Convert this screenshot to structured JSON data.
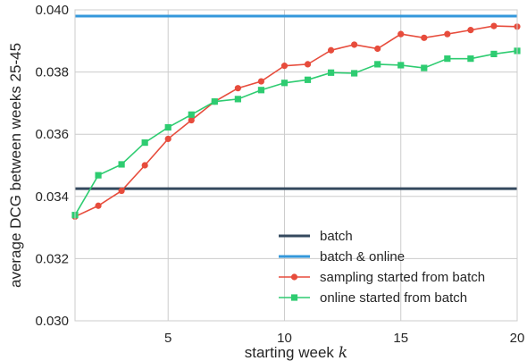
{
  "chart_data": {
    "type": "line",
    "xlabel": "starting week",
    "xlabel_var": "k",
    "ylabel": "average DCG between weeks 25-45",
    "xlim": [
      1,
      20
    ],
    "ylim": [
      0.03,
      0.04
    ],
    "x_ticks": [
      5,
      10,
      15,
      20
    ],
    "y_ticks": [
      "0.030",
      "0.032",
      "0.034",
      "0.036",
      "0.038",
      "0.040"
    ],
    "grid": true,
    "legend_position": "lower-right",
    "series": [
      {
        "name": "batch",
        "kind": "hline",
        "color": "#34495e",
        "value": 0.03425
      },
      {
        "name": "batch & online",
        "kind": "hline",
        "color": "#3498db",
        "value": 0.0398
      },
      {
        "name": "sampling started from batch",
        "kind": "line",
        "marker": "circle",
        "color": "#e74c3c",
        "x": [
          1,
          2,
          3,
          4,
          5,
          6,
          7,
          8,
          9,
          10,
          11,
          12,
          13,
          14,
          15,
          16,
          17,
          18,
          19,
          20
        ],
        "values": [
          0.03335,
          0.0337,
          0.03418,
          0.035,
          0.03585,
          0.03645,
          0.03705,
          0.03748,
          0.0377,
          0.0382,
          0.03825,
          0.0387,
          0.03888,
          0.03875,
          0.03922,
          0.0391,
          0.03922,
          0.03935,
          0.03948,
          0.03946
        ]
      },
      {
        "name": "online started from batch",
        "kind": "line",
        "marker": "square",
        "color": "#2ecc71",
        "x": [
          1,
          2,
          3,
          4,
          5,
          6,
          7,
          8,
          9,
          10,
          11,
          12,
          13,
          14,
          15,
          16,
          17,
          18,
          19,
          20
        ],
        "values": [
          0.0334,
          0.03468,
          0.03503,
          0.03573,
          0.03622,
          0.03663,
          0.03705,
          0.03713,
          0.03742,
          0.03765,
          0.03775,
          0.03798,
          0.03796,
          0.03825,
          0.03822,
          0.03813,
          0.03843,
          0.03843,
          0.03858,
          0.03868
        ]
      }
    ]
  }
}
